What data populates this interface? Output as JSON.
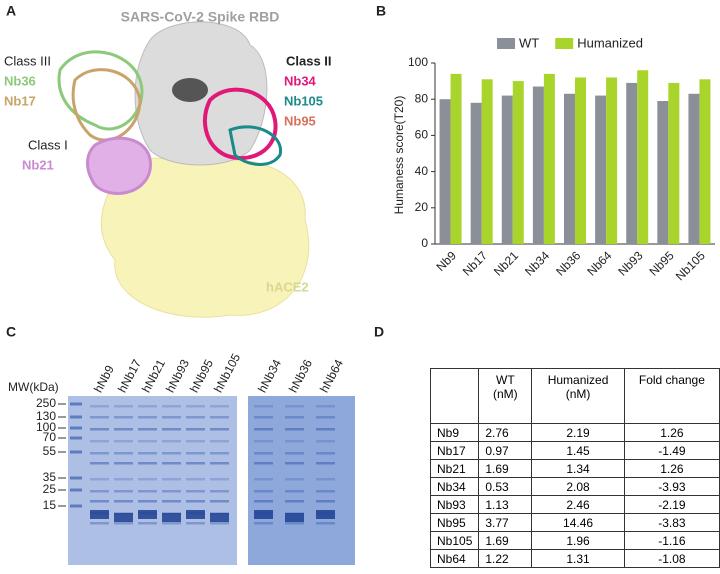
{
  "panel_labels": [
    "A",
    "B",
    "C",
    "D"
  ],
  "structure": {
    "title": "SARS-CoV-2 Spike RBD",
    "labels": [
      {
        "text": "Class III",
        "color": "#222222"
      },
      {
        "text": "Nb36",
        "color": "#8cc97a"
      },
      {
        "text": "Nb17",
        "color": "#c9a36a"
      },
      {
        "text": "Class I",
        "color": "#222222"
      },
      {
        "text": "Nb21",
        "color": "#c98ad0"
      },
      {
        "text": "Class II",
        "color": "#222222"
      },
      {
        "text": "Nb34",
        "color": "#e0187a"
      },
      {
        "text": "Nb105",
        "color": "#1a8a8a"
      },
      {
        "text": "Nb95",
        "color": "#d8705a"
      },
      {
        "text": "hACE2",
        "color": "#d8d890"
      }
    ]
  },
  "chart_data": {
    "type": "bar",
    "y_label": "Humaness score(T20)",
    "categories": [
      "Nb9",
      "Nb17",
      "Nb21",
      "Nb34",
      "Nb36",
      "Nb64",
      "Nb93",
      "Nb95",
      "Nb105"
    ],
    "series": [
      {
        "name": "WT",
        "color": "#8b8f98",
        "values": [
          80,
          78,
          82,
          87,
          83,
          82,
          89,
          79,
          83
        ]
      },
      {
        "name": "Humanized",
        "color": "#a9d42c",
        "values": [
          94,
          91,
          90,
          94,
          92,
          92,
          96,
          89,
          91
        ]
      }
    ],
    "ylim": [
      0,
      100
    ],
    "yticks": [
      0,
      20,
      40,
      60,
      80,
      100
    ],
    "legend": "top"
  },
  "gel": {
    "mw_label": "MW(kDa)",
    "markers": [
      "250",
      "130",
      "100",
      "70",
      "55",
      "35",
      "25",
      "15"
    ],
    "lanes_left": [
      "hNb9",
      "hNb17",
      "hNb21",
      "hNb93",
      "hNb95",
      "hNb105"
    ],
    "lanes_right": [
      "hNb34",
      "hNb36",
      "hNb64"
    ]
  },
  "table": {
    "header": [
      "WT\n(nM)",
      "Humanized\n(nM)",
      "Fold change"
    ],
    "rows": [
      [
        "Nb9",
        2.76,
        2.19,
        1.26
      ],
      [
        "Nb17",
        0.97,
        1.45,
        -1.49
      ],
      [
        "Nb21",
        1.69,
        1.34,
        1.26
      ],
      [
        "Nb34",
        0.53,
        2.08,
        -3.93
      ],
      [
        "Nb93",
        1.13,
        2.46,
        -2.19
      ],
      [
        "Nb95",
        3.77,
        14.46,
        -3.83
      ],
      [
        "Nb105",
        1.69,
        1.96,
        -1.16
      ],
      [
        "Nb64",
        1.22,
        1.31,
        -1.08
      ]
    ]
  }
}
